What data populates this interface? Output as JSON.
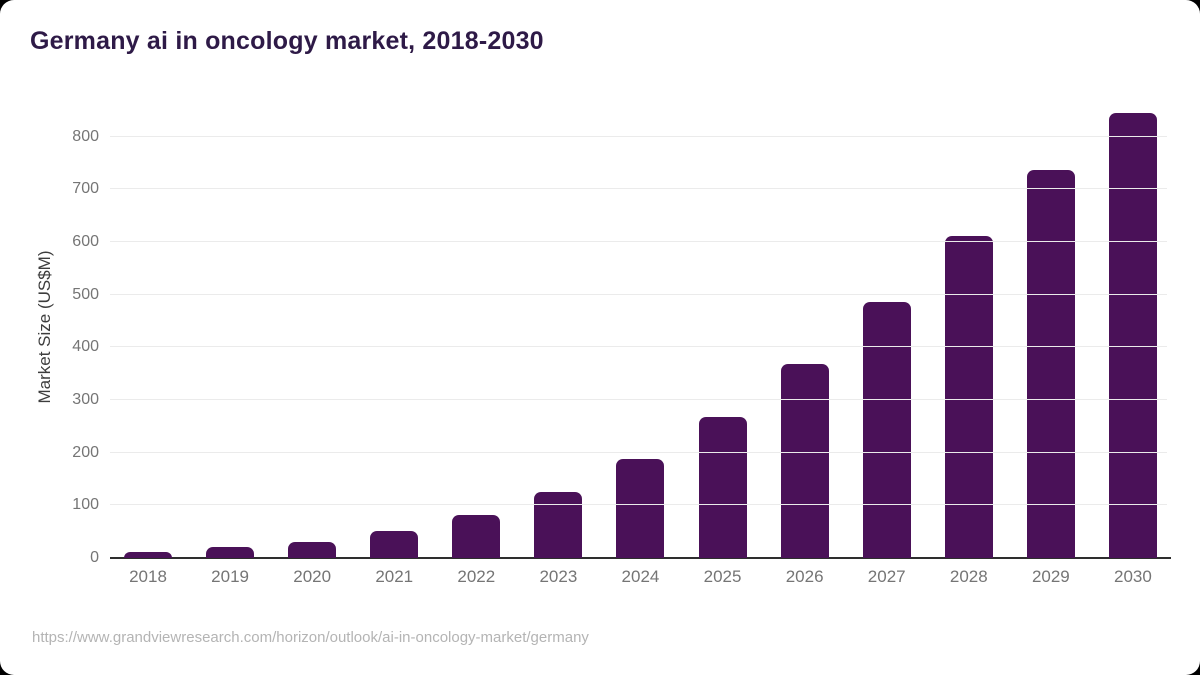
{
  "header": {
    "title": "Germany ai in oncology market, 2018-2030"
  },
  "footer": {
    "source_url": "https://www.grandviewresearch.com/horizon/outlook/ai-in-oncology-market/germany"
  },
  "chart_data": {
    "type": "bar",
    "title": "Germany ai in oncology market, 2018-2030",
    "categories": [
      "2018",
      "2019",
      "2020",
      "2021",
      "2022",
      "2023",
      "2024",
      "2025",
      "2026",
      "2027",
      "2028",
      "2029",
      "2030"
    ],
    "values": [
      11,
      20,
      31,
      52,
      81,
      126,
      187,
      267,
      368,
      486,
      611,
      736,
      844
    ],
    "xlabel": "",
    "ylabel": "Market Size (US$M)",
    "yticks": [
      0,
      100,
      200,
      300,
      400,
      500,
      600,
      700,
      800
    ],
    "ylim": [
      0,
      875
    ],
    "grid": true,
    "legend": "none",
    "colors": {
      "bar": "#4a1158",
      "title": "#2e1a47",
      "axis_title": "#3d3d3d",
      "tick": "#757575",
      "gridline": "#ebebeb",
      "axis_line": "#2e2e2e",
      "source": "#b4b4b4",
      "card_background": "#ffffff",
      "page_background": "#000000"
    }
  }
}
